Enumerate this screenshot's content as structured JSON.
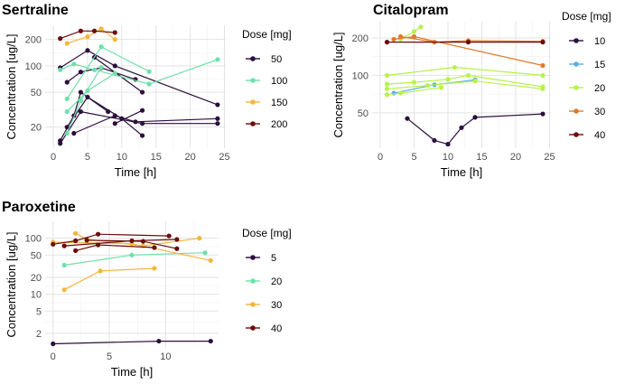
{
  "chart_data": [
    {
      "type": "line",
      "title": "Sertraline",
      "xlabel": "Time [h]",
      "ylabel": "Concentration [ug/L]",
      "y_scale": "log",
      "xlim": [
        -1.2,
        25.2
      ],
      "ylim": [
        11.5,
        290
      ],
      "x_ticks": [
        0,
        5,
        10,
        15,
        20,
        25
      ],
      "y_ticks": [
        20,
        50,
        100,
        200
      ],
      "legend_title": "Dose [mg]",
      "legend": [
        {
          "label": "50",
          "color": "#2b0f3c"
        },
        {
          "label": "100",
          "color": "#6fe0a9"
        },
        {
          "label": "150",
          "color": "#f2b73c"
        },
        {
          "label": "200",
          "color": "#6b0d0d"
        }
      ],
      "series": [
        {
          "dose": "50",
          "color": "#2b0f3c",
          "points": [
            [
              1,
              95
            ],
            [
              5,
              150
            ],
            [
              9,
              100
            ],
            [
              24,
              36
            ]
          ]
        },
        {
          "dose": "50",
          "color": "#2b0f3c",
          "points": [
            [
              2,
              65
            ],
            [
              4,
              85
            ],
            [
              7,
              95
            ],
            [
              12,
              70
            ]
          ]
        },
        {
          "dose": "50",
          "color": "#2b0f3c",
          "points": [
            [
              1,
              14
            ],
            [
              3,
              27
            ],
            [
              4,
              50
            ],
            [
              8,
              30
            ]
          ]
        },
        {
          "dose": "50",
          "color": "#2b0f3c",
          "points": [
            [
              1,
              13
            ],
            [
              4,
              30
            ],
            [
              13,
              22
            ],
            [
              24,
              22
            ]
          ]
        },
        {
          "dose": "50",
          "color": "#2b0f3c",
          "points": [
            [
              2,
              20
            ],
            [
              5,
              44
            ],
            [
              10,
              25
            ],
            [
              13,
              16
            ]
          ]
        },
        {
          "dose": "50",
          "color": "#2b0f3c",
          "points": [
            [
              3,
              17
            ],
            [
              9,
              27
            ],
            [
              12,
              23
            ],
            [
              24,
              25
            ]
          ]
        },
        {
          "dose": "50",
          "color": "#2b0f3c",
          "points": [
            [
              6,
              125
            ],
            [
              13,
              50
            ]
          ]
        },
        {
          "dose": "50",
          "color": "#2b0f3c",
          "points": [
            [
              9,
              22
            ],
            [
              13,
              31
            ]
          ]
        },
        {
          "dose": "100",
          "color": "#6fe0a9",
          "points": [
            [
              1,
              90
            ],
            [
              3,
              105
            ],
            [
              6,
              90
            ],
            [
              14,
              62
            ],
            [
              24,
              118
            ]
          ]
        },
        {
          "dose": "100",
          "color": "#6fe0a9",
          "points": [
            [
              2,
              42
            ],
            [
              7,
              165
            ],
            [
              14,
              86
            ]
          ]
        },
        {
          "dose": "100",
          "color": "#6fe0a9",
          "points": [
            [
              2,
              30
            ],
            [
              5,
              52
            ],
            [
              9,
              82
            ]
          ]
        },
        {
          "dose": "100",
          "color": "#6fe0a9",
          "points": [
            [
              2,
              17
            ],
            [
              4,
              40
            ],
            [
              7,
              96
            ]
          ]
        },
        {
          "dose": "150",
          "color": "#f2b73c",
          "points": [
            [
              2,
              180
            ],
            [
              5,
              215
            ],
            [
              7,
              265
            ],
            [
              9,
              200
            ]
          ]
        },
        {
          "dose": "200",
          "color": "#6b0d0d",
          "points": [
            [
              1,
              205
            ],
            [
              4,
              250
            ],
            [
              6,
              250
            ],
            [
              9,
              240
            ]
          ]
        }
      ]
    },
    {
      "type": "line",
      "title": "Citalopram",
      "xlabel": "Time [h]",
      "ylabel": "Concentration [ug/L]",
      "y_scale": "log",
      "xlim": [
        -1.2,
        25.2
      ],
      "ylim": [
        26,
        270
      ],
      "x_ticks": [
        0,
        5,
        10,
        15,
        20,
        25
      ],
      "y_ticks": [
        50,
        100,
        200
      ],
      "legend_title": "Dose [mg]",
      "legend": [
        {
          "label": "10",
          "color": "#2b0f3c"
        },
        {
          "label": "15",
          "color": "#5aaee6"
        },
        {
          "label": "20",
          "color": "#b6f24a"
        },
        {
          "label": "30",
          "color": "#e07a2a"
        },
        {
          "label": "40",
          "color": "#6b0d0d"
        }
      ],
      "series": [
        {
          "dose": "10",
          "color": "#2b0f3c",
          "points": [
            [
              4,
              45
            ],
            [
              8,
              30
            ],
            [
              10,
              28
            ],
            [
              12,
              38
            ],
            [
              14,
              46
            ],
            [
              24,
              49
            ]
          ]
        },
        {
          "dose": "15",
          "color": "#5aaee6",
          "points": [
            [
              2,
              72
            ],
            [
              8,
              84
            ],
            [
              14,
              92
            ]
          ]
        },
        {
          "dose": "20",
          "color": "#b6f24a",
          "points": [
            [
              1,
              85
            ],
            [
              5,
              88
            ],
            [
              10,
              93
            ],
            [
              13,
              100
            ],
            [
              24,
              81
            ]
          ]
        },
        {
          "dose": "20",
          "color": "#b6f24a",
          "points": [
            [
              1,
              78
            ],
            [
              7,
              83
            ],
            [
              14,
              90
            ],
            [
              24,
              78
            ]
          ]
        },
        {
          "dose": "20",
          "color": "#b6f24a",
          "points": [
            [
              1,
              100
            ],
            [
              11,
              116
            ],
            [
              24,
              100
            ]
          ]
        },
        {
          "dose": "20",
          "color": "#b6f24a",
          "points": [
            [
              3,
              195
            ],
            [
              5,
              225
            ],
            [
              6,
              245
            ]
          ]
        },
        {
          "dose": "20",
          "color": "#b6f24a",
          "points": [
            [
              1,
              70
            ],
            [
              3,
              72
            ],
            [
              9,
              80
            ]
          ]
        },
        {
          "dose": "30",
          "color": "#e07a2a",
          "points": [
            [
              2,
              195
            ],
            [
              5,
              205
            ],
            [
              24,
              120
            ]
          ]
        },
        {
          "dose": "30",
          "color": "#e07a2a",
          "points": [
            [
              3,
              205
            ],
            [
              8,
              185
            ],
            [
              13,
              190
            ],
            [
              24,
              188
            ]
          ]
        },
        {
          "dose": "40",
          "color": "#6b0d0d",
          "points": [
            [
              1,
              185
            ],
            [
              13,
              185
            ],
            [
              24,
              185
            ]
          ]
        }
      ]
    },
    {
      "type": "line",
      "title": "Paroxetine",
      "xlabel": "Time [h]",
      "ylabel": "Concentration [ug/L]",
      "y_scale": "log",
      "xlim": [
        -0.7,
        14.7
      ],
      "ylim": [
        1.1,
        200
      ],
      "x_ticks": [
        0,
        5,
        10
      ],
      "y_ticks": [
        2,
        5,
        10,
        20,
        50,
        100
      ],
      "legend_title": "Dose [mg]",
      "legend": [
        {
          "label": "5",
          "color": "#2b0f3c"
        },
        {
          "label": "20",
          "color": "#6fe0a9"
        },
        {
          "label": "30",
          "color": "#f2b73c"
        },
        {
          "label": "40",
          "color": "#6b0d0d"
        }
      ],
      "series": [
        {
          "dose": "5",
          "color": "#2b0f3c",
          "points": [
            [
              0,
              1.3
            ],
            [
              9.4,
              1.45
            ],
            [
              14,
              1.45
            ]
          ]
        },
        {
          "dose": "20",
          "color": "#6fe0a9",
          "points": [
            [
              1,
              33
            ],
            [
              7,
              50
            ],
            [
              13.5,
              55
            ]
          ]
        },
        {
          "dose": "30",
          "color": "#f2b73c",
          "points": [
            [
              1,
              12
            ],
            [
              4.2,
              26
            ],
            [
              9,
              29
            ]
          ]
        },
        {
          "dose": "30",
          "color": "#f2b73c",
          "points": [
            [
              2,
              122
            ],
            [
              3,
              96
            ],
            [
              8,
              73
            ],
            [
              13,
              100
            ]
          ]
        },
        {
          "dose": "30",
          "color": "#f2b73c",
          "points": [
            [
              0,
              85
            ],
            [
              7,
              80
            ],
            [
              14,
              40
            ]
          ]
        },
        {
          "dose": "40",
          "color": "#6b0d0d",
          "points": [
            [
              0,
              78
            ],
            [
              2,
              90
            ],
            [
              4,
              118
            ],
            [
              10.3,
              110
            ]
          ]
        },
        {
          "dose": "40",
          "color": "#6b0d0d",
          "points": [
            [
              1,
              73
            ],
            [
              7,
              90
            ],
            [
              11,
              95
            ]
          ]
        },
        {
          "dose": "40",
          "color": "#6b0d0d",
          "points": [
            [
              2,
              60
            ],
            [
              4,
              76
            ],
            [
              9,
              68
            ]
          ]
        },
        {
          "dose": "40",
          "color": "#6b0d0d",
          "points": [
            [
              3,
              92
            ],
            [
              8,
              88
            ],
            [
              11,
              65
            ]
          ]
        }
      ]
    }
  ]
}
